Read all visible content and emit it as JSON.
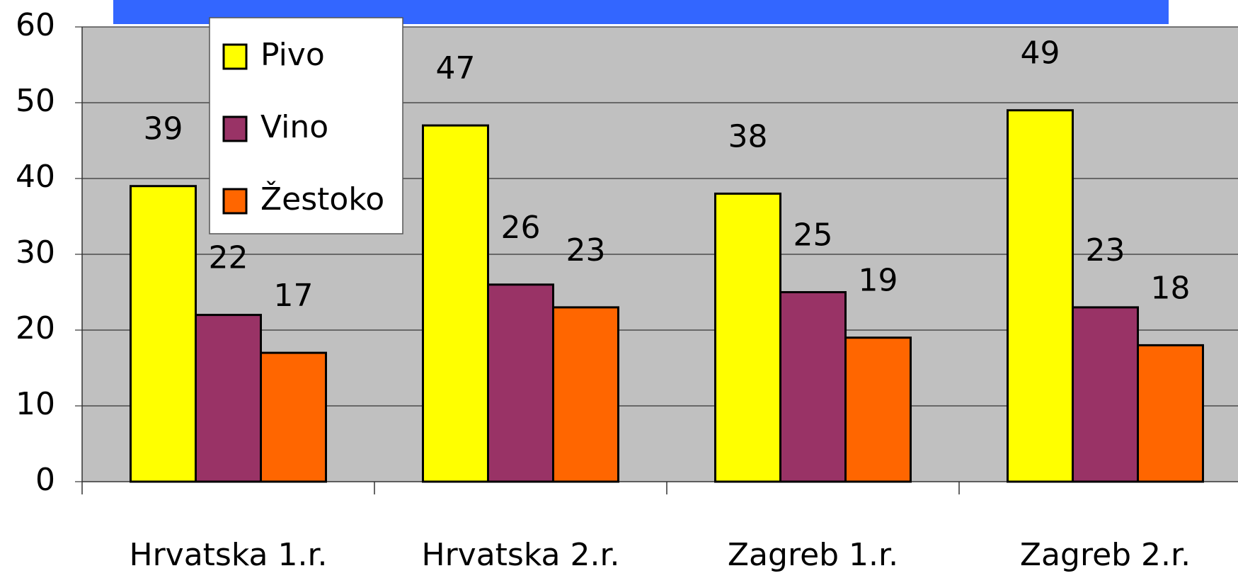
{
  "chart_data": {
    "type": "bar",
    "categories": [
      "Hrvatska 1.r.",
      "Hrvatska 2.r.",
      "Zagreb 1.r.",
      "Zagreb 2.r."
    ],
    "series": [
      {
        "name": "Pivo",
        "color": "#ffff00",
        "values": [
          39,
          47,
          38,
          49
        ]
      },
      {
        "name": "Vino",
        "color": "#993366",
        "values": [
          22,
          26,
          25,
          23
        ]
      },
      {
        "name": "Žestoko",
        "color": "#ff6600",
        "values": [
          17,
          23,
          19,
          18
        ]
      }
    ],
    "ylim": [
      0,
      60
    ],
    "yticks": [
      0,
      10,
      20,
      30,
      40,
      50,
      60
    ],
    "grid": true
  }
}
